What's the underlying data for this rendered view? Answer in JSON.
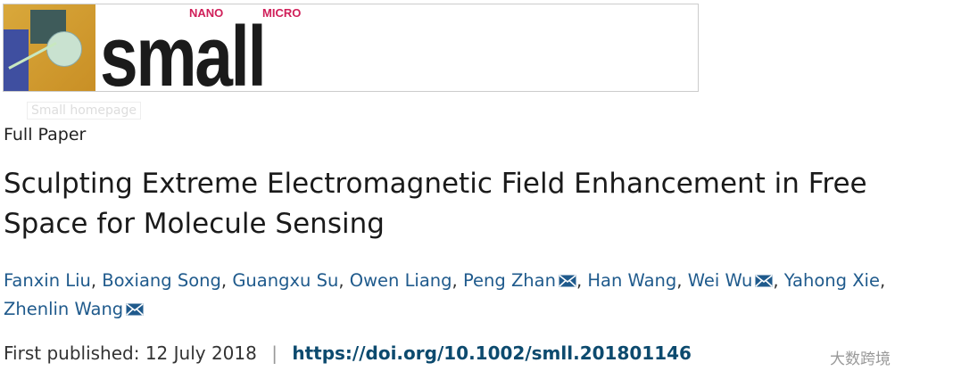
{
  "journal": {
    "logo_text": "small",
    "logo_nano": "NANO",
    "logo_micro": "MICRO",
    "homepage_label": "Small homepage"
  },
  "article": {
    "type": "Full Paper",
    "title": "Sculpting Extreme Electromagnetic Field Enhancement in Free Space for Molecule Sensing",
    "authors": [
      {
        "name": "Fanxin Liu",
        "corresponding": false
      },
      {
        "name": "Boxiang Song",
        "corresponding": false
      },
      {
        "name": "Guangxu Su",
        "corresponding": false
      },
      {
        "name": "Owen Liang",
        "corresponding": false
      },
      {
        "name": "Peng Zhan",
        "corresponding": true
      },
      {
        "name": "Han Wang",
        "corresponding": false
      },
      {
        "name": "Wei Wu",
        "corresponding": true
      },
      {
        "name": "Yahong Xie",
        "corresponding": false
      },
      {
        "name": "Zhenlin Wang",
        "corresponding": true
      }
    ],
    "published_label": "First published:",
    "published_date": "12 July 2018",
    "separator": "|",
    "doi": "https://doi.org/10.1002/smll.201801146"
  },
  "watermark": "大数跨境"
}
